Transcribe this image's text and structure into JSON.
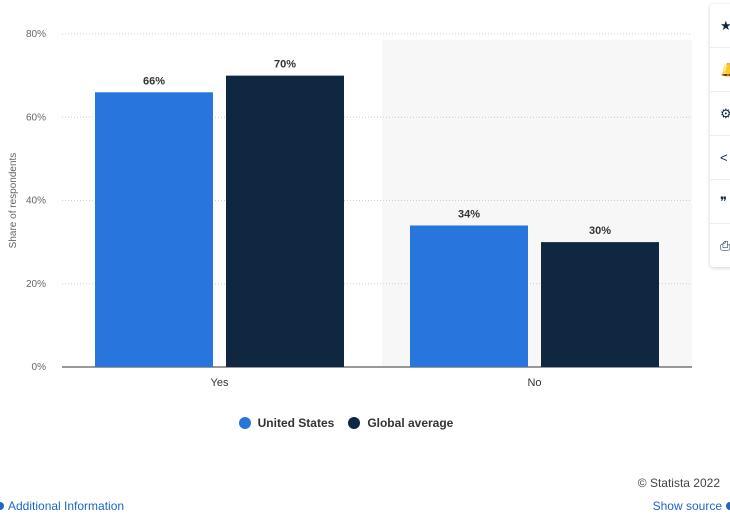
{
  "chart_data": {
    "type": "bar",
    "categories": [
      "Yes",
      "No"
    ],
    "series": [
      {
        "name": "United States",
        "values": [
          66,
          34
        ],
        "color": "#2876dd"
      },
      {
        "name": "Global average",
        "values": [
          70,
          30
        ],
        "color": "#0f2741"
      }
    ],
    "data_labels": [
      [
        "66%",
        "34%"
      ],
      [
        "70%",
        "30%"
      ]
    ],
    "ylabel": "Share of respondents",
    "ylim": [
      0,
      80
    ],
    "yticks": [
      0,
      20,
      40,
      60,
      80
    ],
    "ytick_labels": [
      "0%",
      "20%",
      "40%",
      "60%",
      "80%"
    ],
    "grid": true,
    "legend_position": "bottom"
  },
  "credit": "© Statista 2022",
  "footer": {
    "additional_info": "Additional Information",
    "show_source": "Show source"
  },
  "toolbar": {
    "icons": [
      "star-icon",
      "bell-icon",
      "gear-icon",
      "share-icon",
      "quote-icon",
      "print-icon"
    ]
  }
}
